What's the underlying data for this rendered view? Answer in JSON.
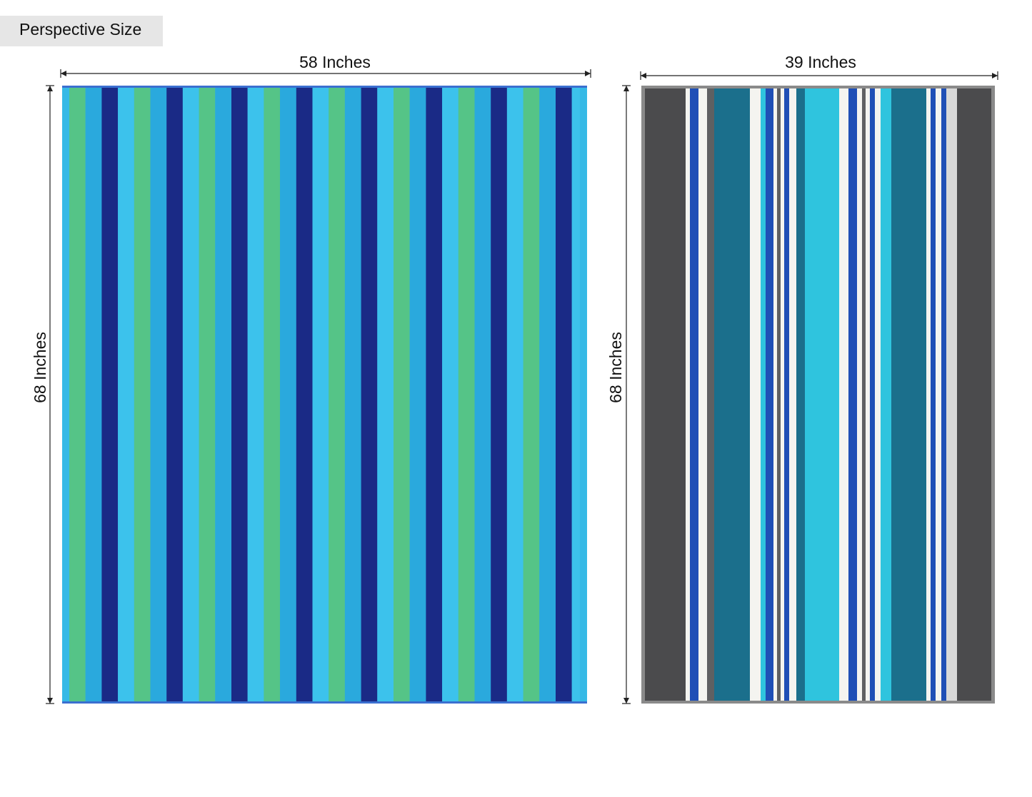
{
  "badge": "Perspective Size",
  "products": [
    {
      "width_label": "58 Inches",
      "height_label": "68 Inches"
    },
    {
      "width_label": "39 Inches",
      "height_label": "68 Inches"
    }
  ]
}
